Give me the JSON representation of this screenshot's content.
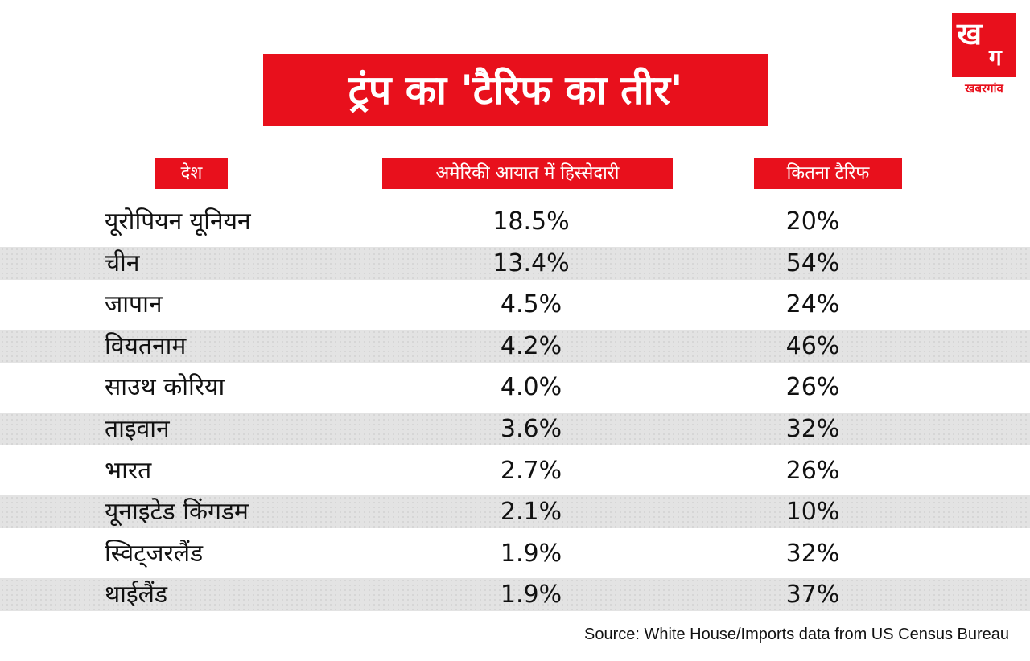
{
  "title": "ट्रंप का 'टैरिफ का तीर'",
  "logo": {
    "mark_letter": "ख",
    "mark_small": "ग",
    "text": "खबरगांव"
  },
  "colors": {
    "accent": "#e8101c",
    "stripe": "#e3e3e3",
    "text": "#111111"
  },
  "chart_data": {
    "type": "table",
    "title": "ट्रंप का 'टैरिफ का तीर'",
    "columns": [
      "देश",
      "अमेरिकी आयात में हिस्सेदारी",
      "कितना टैरिफ"
    ],
    "rows": [
      {
        "country": "यूरोपियन यूनियन",
        "share": "18.5%",
        "tariff": "20%"
      },
      {
        "country": "चीन",
        "share": "13.4%",
        "tariff": "54%"
      },
      {
        "country": "जापान",
        "share": "4.5%",
        "tariff": "24%"
      },
      {
        "country": "वियतनाम",
        "share": "4.2%",
        "tariff": "46%"
      },
      {
        "country": "साउथ कोरिया",
        "share": "4.0%",
        "tariff": "26%"
      },
      {
        "country": "ताइवान",
        "share": "3.6%",
        "tariff": "32%"
      },
      {
        "country": "भारत",
        "share": "2.7%",
        "tariff": "26%"
      },
      {
        "country": "यूनाइटेड किंगडम",
        "share": "2.1%",
        "tariff": "10%"
      },
      {
        "country": "स्विट्जरलैंड",
        "share": "1.9%",
        "tariff": "32%"
      },
      {
        "country": "थाईलैंड",
        "share": "1.9%",
        "tariff": "37%"
      }
    ],
    "source": "Source: White House/Imports data from US Census Bureau"
  }
}
